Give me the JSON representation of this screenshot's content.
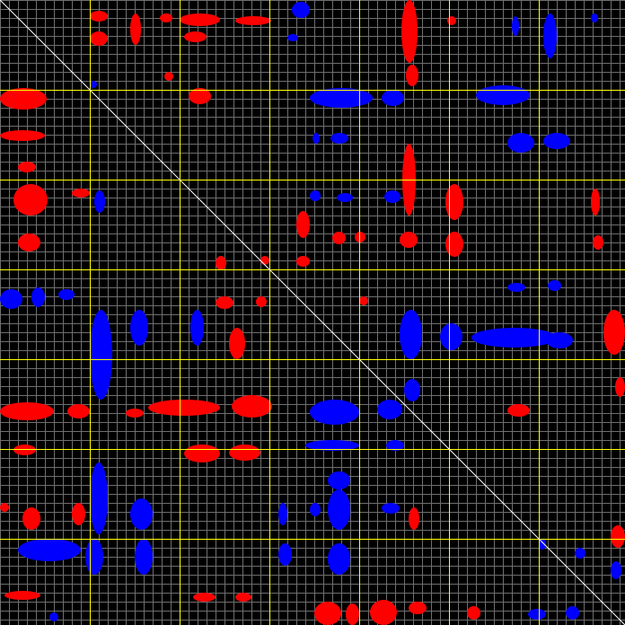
{
  "colors": {
    "background": "#000000",
    "minor_grid": "#6e6e6e",
    "major_grid": "#ffff00",
    "diagonal": "#ffffff",
    "positive": "#ff0000",
    "negative": "#0000ff"
  }
}
